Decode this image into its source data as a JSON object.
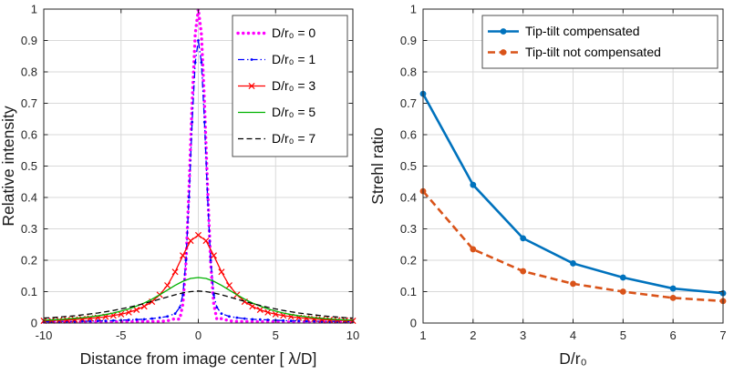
{
  "figure": {
    "background": "#ffffff",
    "axes_color": "#262626",
    "grid_color": "#d9d9d9"
  },
  "chart_data": [
    {
      "type": "line",
      "title": "",
      "xlabel": "Distance from image center [ λ/D]",
      "ylabel": "Relative intensity",
      "xlim": [
        -10,
        10
      ],
      "ylim": [
        0,
        1
      ],
      "xticks": [
        -10,
        -5,
        0,
        5,
        10
      ],
      "xtick_labels": [
        "-10",
        "-5",
        "0",
        "5",
        "10"
      ],
      "yticks": [
        0,
        0.1,
        0.2,
        0.3,
        0.4,
        0.5,
        0.6,
        0.7,
        0.8,
        0.9,
        1
      ],
      "ytick_labels": [
        "0",
        "0.1",
        "0.2",
        "0.3",
        "0.4",
        "0.5",
        "0.6",
        "0.7",
        "0.8",
        "0.9",
        "1"
      ],
      "grid": true,
      "legend_position": "top-right",
      "series": [
        {
          "name": "D/r₀ = 0",
          "color": "#ff00ff",
          "style": "dotted-thick",
          "marker": "none",
          "symmetric_about_zero": true,
          "points": [
            [
              0,
              1.0
            ],
            [
              0.2,
              0.92
            ],
            [
              0.4,
              0.7
            ],
            [
              0.6,
              0.43
            ],
            [
              0.8,
              0.19
            ],
            [
              1,
              0.06
            ],
            [
              1.2,
              0.012
            ],
            [
              1.5,
              0.014
            ],
            [
              2,
              0.007
            ],
            [
              2.5,
              0.005
            ],
            [
              3,
              0.005
            ],
            [
              4,
              0.004
            ],
            [
              5,
              0.004
            ],
            [
              6,
              0.003
            ],
            [
              7,
              0.003
            ],
            [
              8,
              0.003
            ],
            [
              9,
              0.003
            ],
            [
              10,
              0.003
            ]
          ]
        },
        {
          "name": "D/r₀ = 1",
          "color": "#0000ff",
          "style": "dashdot",
          "marker": "dot",
          "symmetric_about_zero": true,
          "points": [
            [
              0,
              0.9
            ],
            [
              0.2,
              0.83
            ],
            [
              0.4,
              0.64
            ],
            [
              0.6,
              0.4
            ],
            [
              0.8,
              0.2
            ],
            [
              1,
              0.09
            ],
            [
              1.2,
              0.05
            ],
            [
              1.5,
              0.03
            ],
            [
              2,
              0.021
            ],
            [
              2.5,
              0.017
            ],
            [
              3,
              0.014
            ],
            [
              3.5,
              0.012
            ],
            [
              4,
              0.011
            ],
            [
              4.5,
              0.01
            ],
            [
              5,
              0.009
            ],
            [
              5.5,
              0.008
            ],
            [
              6,
              0.007
            ],
            [
              6.5,
              0.007
            ],
            [
              7,
              0.006
            ],
            [
              7.5,
              0.006
            ],
            [
              8,
              0.005
            ],
            [
              8.5,
              0.005
            ],
            [
              9,
              0.005
            ],
            [
              9.5,
              0.004
            ],
            [
              10,
              0.004
            ]
          ]
        },
        {
          "name": "D/r₀ = 3",
          "color": "#ff0000",
          "style": "solid",
          "marker": "x",
          "symmetric_about_zero": true,
          "points": [
            [
              0,
              0.28
            ],
            [
              0.5,
              0.262
            ],
            [
              1,
              0.215
            ],
            [
              1.5,
              0.163
            ],
            [
              2,
              0.12
            ],
            [
              2.5,
              0.09
            ],
            [
              3,
              0.068
            ],
            [
              3.5,
              0.053
            ],
            [
              4,
              0.042
            ],
            [
              4.5,
              0.034
            ],
            [
              5,
              0.028
            ],
            [
              5.5,
              0.024
            ],
            [
              6,
              0.02
            ],
            [
              6.5,
              0.017
            ],
            [
              7,
              0.015
            ],
            [
              7.5,
              0.013
            ],
            [
              8,
              0.011
            ],
            [
              8.5,
              0.01
            ],
            [
              9,
              0.009
            ],
            [
              9.5,
              0.008
            ],
            [
              10,
              0.007
            ]
          ]
        },
        {
          "name": "D/r₀ = 5",
          "color": "#00b200",
          "style": "solid",
          "marker": "none",
          "symmetric_about_zero": true,
          "points": [
            [
              0,
              0.145
            ],
            [
              0.5,
              0.142
            ],
            [
              1,
              0.133
            ],
            [
              1.5,
              0.12
            ],
            [
              2,
              0.105
            ],
            [
              2.5,
              0.09
            ],
            [
              3,
              0.076
            ],
            [
              3.5,
              0.064
            ],
            [
              4,
              0.054
            ],
            [
              4.5,
              0.045
            ],
            [
              5,
              0.038
            ],
            [
              5.5,
              0.032
            ],
            [
              6,
              0.027
            ],
            [
              6.5,
              0.023
            ],
            [
              7,
              0.02
            ],
            [
              7.5,
              0.017
            ],
            [
              8,
              0.015
            ],
            [
              8.5,
              0.013
            ],
            [
              9,
              0.011
            ],
            [
              9.5,
              0.01
            ],
            [
              10,
              0.009
            ]
          ]
        },
        {
          "name": "D/r₀ = 7",
          "color": "#000000",
          "style": "dashed",
          "marker": "none",
          "symmetric_about_zero": true,
          "points": [
            [
              0,
              0.102
            ],
            [
              0.5,
              0.1
            ],
            [
              1,
              0.096
            ],
            [
              1.5,
              0.09
            ],
            [
              2,
              0.083
            ],
            [
              2.5,
              0.076
            ],
            [
              3,
              0.069
            ],
            [
              3.5,
              0.062
            ],
            [
              4,
              0.056
            ],
            [
              4.5,
              0.05
            ],
            [
              5,
              0.045
            ],
            [
              5.5,
              0.04
            ],
            [
              6,
              0.036
            ],
            [
              6.5,
              0.032
            ],
            [
              7,
              0.029
            ],
            [
              7.5,
              0.026
            ],
            [
              8,
              0.023
            ],
            [
              8.5,
              0.021
            ],
            [
              9,
              0.019
            ],
            [
              9.5,
              0.017
            ],
            [
              10,
              0.016
            ]
          ]
        }
      ]
    },
    {
      "type": "line",
      "title": "",
      "xlabel": "D/r₀",
      "ylabel": "Strehl ratio",
      "xlim": [
        1,
        7
      ],
      "ylim": [
        0,
        1
      ],
      "xticks": [
        1,
        2,
        3,
        4,
        5,
        6,
        7
      ],
      "xtick_labels": [
        "1",
        "2",
        "3",
        "4",
        "5",
        "6",
        "7"
      ],
      "yticks": [
        0,
        0.1,
        0.2,
        0.3,
        0.4,
        0.5,
        0.6,
        0.7,
        0.8,
        0.9,
        1
      ],
      "ytick_labels": [
        "0",
        "0.1",
        "0.2",
        "0.3",
        "0.4",
        "0.5",
        "0.6",
        "0.7",
        "0.8",
        "0.9",
        "1"
      ],
      "grid": true,
      "legend_position": "top-right",
      "series": [
        {
          "name": "Tip-tilt compensated",
          "color": "#0072bd",
          "style": "solid-thick",
          "marker": "disc",
          "x": [
            1,
            2,
            3,
            4,
            5,
            6,
            7
          ],
          "values": [
            0.73,
            0.44,
            0.27,
            0.19,
            0.145,
            0.11,
            0.095
          ]
        },
        {
          "name": "Tip-tilt not compensated",
          "color": "#d95319",
          "style": "dashed-thick",
          "marker": "disc",
          "x": [
            1,
            2,
            3,
            4,
            5,
            6,
            7
          ],
          "values": [
            0.42,
            0.235,
            0.165,
            0.125,
            0.1,
            0.08,
            0.07
          ]
        }
      ]
    }
  ]
}
